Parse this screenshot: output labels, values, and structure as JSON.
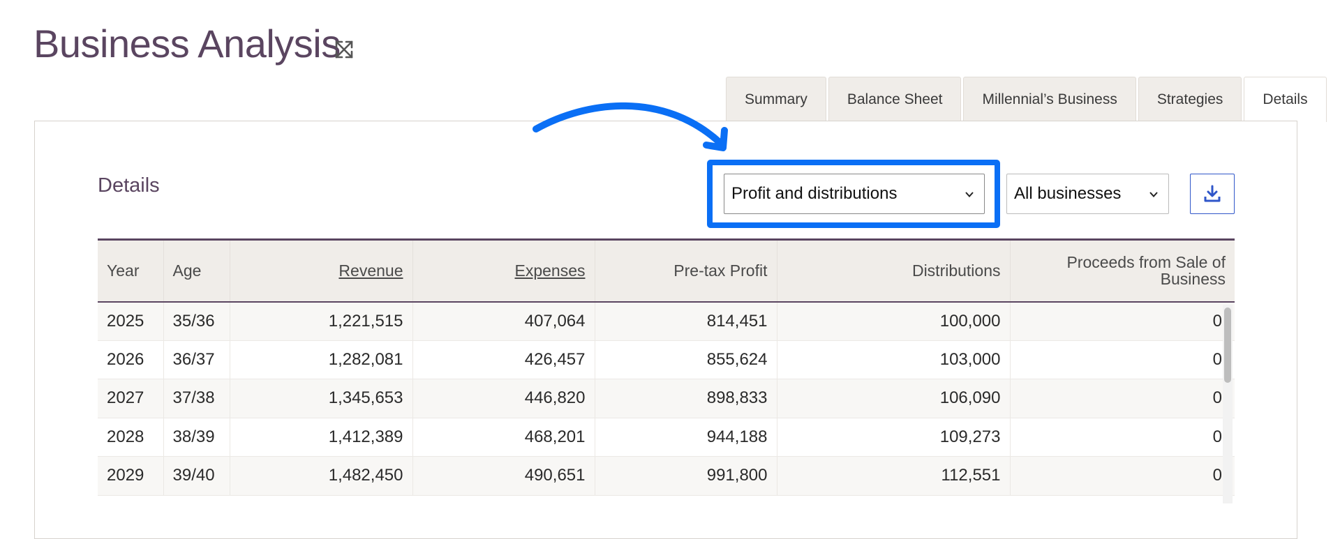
{
  "page": {
    "title": "Business Analysis"
  },
  "tabs": [
    {
      "label": "Summary",
      "active": false
    },
    {
      "label": "Balance Sheet",
      "active": false
    },
    {
      "label": "Millennial’s Business",
      "active": false
    },
    {
      "label": "Strategies",
      "active": false
    },
    {
      "label": "Details",
      "active": true
    }
  ],
  "details": {
    "title": "Details",
    "view_select": {
      "value": "Profit and distributions"
    },
    "business_select": {
      "value": "All businesses"
    }
  },
  "table": {
    "columns": [
      "Year",
      "Age",
      "Revenue",
      "Expenses",
      "Pre-tax Profit",
      "Distributions",
      "Proceeds from Sale of Business"
    ],
    "rows": [
      [
        "2025",
        "35/36",
        "1,221,515",
        "407,064",
        "814,451",
        "100,000",
        "0"
      ],
      [
        "2026",
        "36/37",
        "1,282,081",
        "426,457",
        "855,624",
        "103,000",
        "0"
      ],
      [
        "2027",
        "37/38",
        "1,345,653",
        "446,820",
        "898,833",
        "106,090",
        "0"
      ],
      [
        "2028",
        "38/39",
        "1,412,389",
        "468,201",
        "944,188",
        "109,273",
        "0"
      ],
      [
        "2029",
        "39/40",
        "1,482,450",
        "490,651",
        "991,800",
        "112,551",
        "0"
      ]
    ]
  },
  "colors": {
    "title": "#5a4560",
    "highlight": "#0a6ff5",
    "header_bg": "#f0ede9",
    "download": "#2f56c9"
  },
  "icons": {
    "expand": "expand-arrows-icon",
    "download": "download-icon",
    "dropdown": "chevron-down-icon",
    "annotation": "curved-arrow-icon"
  }
}
